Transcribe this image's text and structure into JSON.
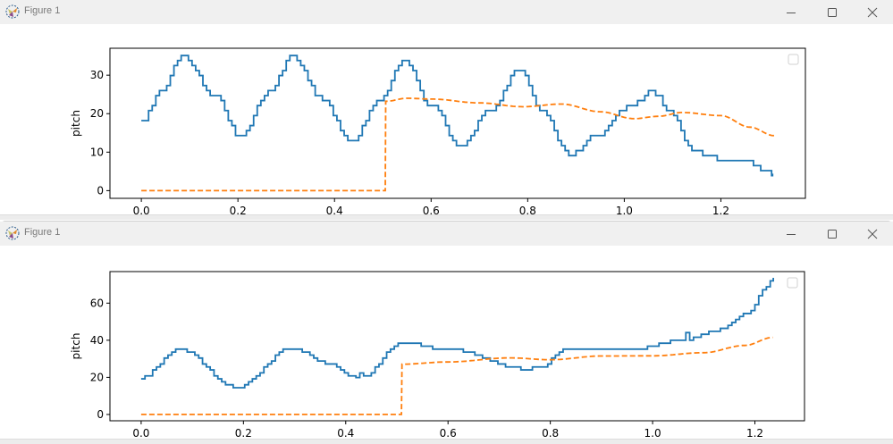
{
  "windows": [
    {
      "title": "Figure 1",
      "controls": {
        "minimize": "minimize-icon",
        "maximize": "maximize-icon",
        "close": "close-icon"
      }
    },
    {
      "title": "Figure 1",
      "controls": {
        "minimize": "minimize-icon",
        "maximize": "maximize-icon",
        "close": "close-icon"
      }
    }
  ],
  "colors": {
    "series1": "#1f77b4",
    "series2": "#ff7f0e",
    "titlebar": "#f0f0f0"
  },
  "chart_data": [
    {
      "type": "line",
      "ylabel": "pitch",
      "xlabel": "",
      "xlim": [
        -0.065,
        1.375
      ],
      "ylim": [
        -2,
        37
      ],
      "xticks": [
        "0.0",
        "0.2",
        "0.4",
        "0.6",
        "0.8",
        "1.0",
        "1.2"
      ],
      "yticks": [
        "0",
        "10",
        "20",
        "30"
      ],
      "grid": false,
      "legend": "top-right (empty)",
      "series": [
        {
          "style": "solid-step",
          "color": "#1f77b4",
          "x": [
            0,
            0.04,
            0.085,
            0.15,
            0.206,
            0.26,
            0.314,
            0.372,
            0.434,
            0.49,
            0.545,
            0.6,
            0.662,
            0.72,
            0.783,
            0.83,
            0.885,
            0.946,
            1.008,
            1.057,
            1.1,
            1.137,
            1.181,
            1.248,
            1.307
          ],
          "y": [
            17.9,
            25.5,
            35.2,
            24.7,
            13.9,
            25.5,
            34.8,
            24.0,
            12.6,
            23.2,
            33.6,
            22.0,
            11.3,
            21.0,
            31.5,
            20.5,
            9.4,
            14.7,
            21.6,
            25.8,
            20.0,
            10.8,
            8.5,
            7.7,
            4.4
          ]
        },
        {
          "style": "dashed",
          "color": "#ff7f0e",
          "x": [
            0,
            0.505,
            0.506,
            0.55,
            0.6,
            0.7,
            0.79,
            0.87,
            0.95,
            1.02,
            1.07,
            1.12,
            1.2,
            1.26,
            1.31
          ],
          "y": [
            0,
            0,
            23.2,
            24.0,
            23.8,
            22.8,
            21.8,
            22.5,
            20.5,
            18.7,
            19.3,
            20.3,
            19.5,
            16.5,
            14.3
          ]
        }
      ]
    },
    {
      "type": "line",
      "ylabel": "pitch",
      "xlabel": "",
      "xlim": [
        -0.061,
        1.297
      ],
      "ylim": [
        -3.4,
        77
      ],
      "xticks": [
        "0.0",
        "0.2",
        "0.4",
        "0.6",
        "0.8",
        "1.0",
        "1.2"
      ],
      "yticks": [
        "0",
        "20",
        "40",
        "60"
      ],
      "grid": false,
      "legend": "top-right (empty)",
      "series": [
        {
          "style": "solid-step",
          "color": "#1f77b4",
          "x": [
            0,
            0.073,
            0.187,
            0.295,
            0.365,
            0.417,
            0.421,
            0.425,
            0.429,
            0.51,
            0.6,
            0.75,
            0.775,
            0.83,
            0.9,
            0.955,
            1.055,
            1.059,
            1.063,
            1.067,
            1.128,
            1.187,
            1.219,
            1.236
          ],
          "y": [
            19.9,
            35.4,
            14.6,
            35.8,
            27.9,
            19.9,
            19.9,
            27.9,
            19.9,
            38.8,
            35.0,
            24.7,
            25.0,
            34.8,
            35.9,
            35.1,
            40.0,
            40.0,
            47.6,
            40.6,
            45.6,
            54.4,
            68.0,
            73.6
          ]
        },
        {
          "style": "dashed",
          "color": "#ff7f0e",
          "x": [
            0,
            0.509,
            0.51,
            0.6,
            0.72,
            0.8,
            0.9,
            1.0,
            1.1,
            1.18,
            1.235
          ],
          "y": [
            0,
            0,
            27.1,
            28.3,
            30.5,
            29.5,
            31.5,
            31.6,
            33.3,
            37.2,
            41.5
          ]
        }
      ]
    }
  ]
}
